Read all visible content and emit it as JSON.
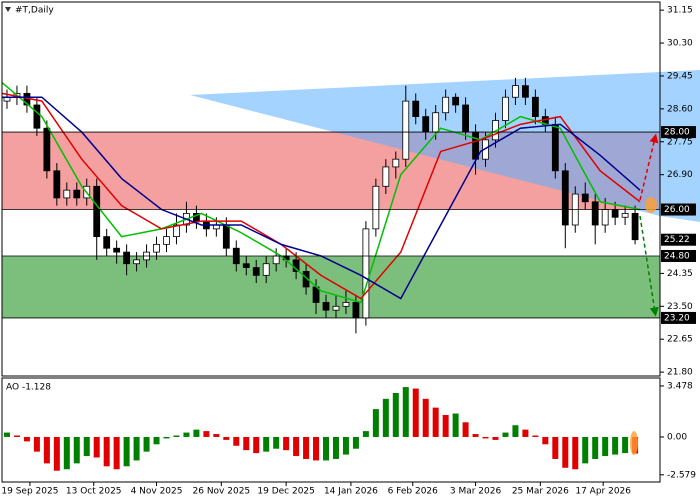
{
  "chart_data": [
    {
      "type": "candlestick",
      "title": "#T,Daily",
      "ylim": [
        21.7,
        31.36
      ],
      "yticks": [
        31.15,
        {
          "value": 30.3,
          "label": "30.30"
        },
        29.45,
        {
          "value": 28.6,
          "label": "28.60"
        },
        27.75,
        {
          "value": 26.9,
          "label": "26.90"
        },
        24.35,
        {
          "value": 23.5,
          "label": "23.50"
        },
        22.65,
        {
          "value": 21.8,
          "label": "21.80"
        }
      ],
      "up_color": "#ffffff",
      "down_color": "#000000",
      "open": [
        28.8,
        28.9,
        29.0,
        28.7,
        28.1,
        27.0,
        26.3,
        26.5,
        26.3,
        26.6,
        25.3,
        25.0,
        24.9,
        24.6,
        24.7,
        24.9,
        25.1,
        25.3,
        25.6,
        25.9,
        25.7,
        25.5,
        25.6,
        25.0,
        24.6,
        24.5,
        24.3,
        24.6,
        24.8,
        24.7,
        24.4,
        24.0,
        23.6,
        23.4,
        23.5,
        23.6,
        23.2,
        25.5,
        26.6,
        27.1,
        27.3,
        28.8,
        28.4,
        28.0,
        28.5,
        28.9,
        28.7,
        28.0,
        27.3,
        27.8,
        28.3,
        28.9,
        29.2,
        28.9,
        28.4,
        28.2,
        27.0,
        25.6,
        26.4,
        26.2,
        25.6,
        26.0,
        25.8,
        25.9
      ],
      "high": [
        29.1,
        29.2,
        29.2,
        28.9,
        28.3,
        27.2,
        26.7,
        26.7,
        26.8,
        26.8,
        25.5,
        25.2,
        25.1,
        24.9,
        25.1,
        25.3,
        25.5,
        25.9,
        26.2,
        26.1,
        25.9,
        25.8,
        25.8,
        25.2,
        24.8,
        24.7,
        24.8,
        25.0,
        25.0,
        24.9,
        24.6,
        24.2,
        23.8,
        23.8,
        23.9,
        23.8,
        25.7,
        26.8,
        27.3,
        27.5,
        29.2,
        29.0,
        28.6,
        28.7,
        29.1,
        29.0,
        28.9,
        28.2,
        28.0,
        28.5,
        29.1,
        29.4,
        29.4,
        29.1,
        28.6,
        28.4,
        27.2,
        26.6,
        26.7,
        26.4,
        26.3,
        26.2,
        26.1,
        26.1
      ],
      "low": [
        28.6,
        28.7,
        28.5,
        27.9,
        26.8,
        26.1,
        26.1,
        26.1,
        26.1,
        24.7,
        24.8,
        24.6,
        24.3,
        24.4,
        24.5,
        24.7,
        24.9,
        25.1,
        25.4,
        25.5,
        25.3,
        25.3,
        24.8,
        24.4,
        24.3,
        24.1,
        24.1,
        24.4,
        24.5,
        24.2,
        23.8,
        23.3,
        23.2,
        23.2,
        23.3,
        22.8,
        23.0,
        25.3,
        26.4,
        26.8,
        27.1,
        28.2,
        27.8,
        27.8,
        28.3,
        28.5,
        27.8,
        26.9,
        27.1,
        27.6,
        28.1,
        28.7,
        28.7,
        28.2,
        28.0,
        26.8,
        25.0,
        25.4,
        26.0,
        25.1,
        25.4,
        25.6,
        25.6,
        25.1
      ],
      "close": [
        28.9,
        29.0,
        28.7,
        28.1,
        27.0,
        26.3,
        26.5,
        26.3,
        26.6,
        25.3,
        25.0,
        24.9,
        24.6,
        24.7,
        24.9,
        25.1,
        25.3,
        25.6,
        25.9,
        25.7,
        25.5,
        25.6,
        25.0,
        24.6,
        24.5,
        24.3,
        24.6,
        24.8,
        24.7,
        24.4,
        24.0,
        23.6,
        23.4,
        23.5,
        23.6,
        23.2,
        25.5,
        26.6,
        27.1,
        27.3,
        28.8,
        28.4,
        28.0,
        28.5,
        28.9,
        28.7,
        28.0,
        27.3,
        27.8,
        28.3,
        28.9,
        29.2,
        28.9,
        28.4,
        28.2,
        27.0,
        25.6,
        26.4,
        26.2,
        25.6,
        26.0,
        25.8,
        25.9,
        25.22
      ],
      "line_x": [
        0,
        4,
        8,
        12,
        16,
        20,
        24,
        28,
        32,
        36,
        40,
        44,
        48,
        52,
        56,
        60,
        64
      ],
      "lines": [
        {
          "color": "#00c000",
          "values": [
            29.28,
            28.4,
            26.6,
            25.3,
            25.5,
            25.9,
            25.4,
            24.8,
            23.9,
            23.6,
            26.9,
            28.1,
            27.8,
            28.4,
            28.1,
            26.2,
            26.0
          ]
        },
        {
          "color": "#e00000",
          "values": [
            29.0,
            28.8,
            27.3,
            26.1,
            25.5,
            25.7,
            25.7,
            25.1,
            24.3,
            23.7,
            24.9,
            27.5,
            27.8,
            28.2,
            28.4,
            27.0,
            26.2
          ]
        },
        {
          "color": "#000090",
          "values": [
            28.9,
            28.9,
            28.0,
            26.8,
            26.0,
            25.6,
            25.6,
            25.1,
            24.8,
            24.3,
            23.7,
            25.6,
            27.5,
            28.1,
            28.2,
            27.4,
            26.5
          ]
        }
      ],
      "zones": [
        {
          "from": 26,
          "to": 28,
          "color": "#f4a0a0"
        },
        {
          "from": 23.2,
          "to": 24.8,
          "color": "#7cbf7c"
        }
      ],
      "levels": [
        {
          "value": 28,
          "label": "28.00"
        },
        {
          "value": 26,
          "label": "26.00"
        },
        {
          "value": 24.8,
          "label": "24.80"
        },
        {
          "value": 23.2,
          "label": "23.20"
        }
      ],
      "last_price": 25.22
    },
    {
      "type": "bar",
      "title": "AO -1.128",
      "ylim": [
        -3.07,
        4.02
      ],
      "yticks": [
        3.478,
        {
          "value": 0,
          "label": "0.00"
        },
        -2.579
      ],
      "up_color": "#008000",
      "down_color": "#e00000",
      "values": [
        0.3,
        0.1,
        -0.3,
        -1.0,
        -1.8,
        -2.3,
        -2.2,
        -1.8,
        -1.3,
        -1.4,
        -2.0,
        -2.2,
        -2.0,
        -1.6,
        -1.0,
        -0.5,
        -0.1,
        0.1,
        0.3,
        0.5,
        0.4,
        0.2,
        -0.2,
        -0.6,
        -0.9,
        -1.1,
        -1.0,
        -0.8,
        -0.9,
        -1.3,
        -1.5,
        -1.6,
        -1.6,
        -1.5,
        -1.2,
        -0.8,
        0.4,
        1.9,
        2.6,
        3.0,
        3.4,
        3.3,
        2.6,
        2.0,
        1.5,
        1.6,
        1.0,
        0.2,
        -0.1,
        -0.2,
        0.3,
        0.8,
        0.5,
        0.1,
        -0.5,
        -1.5,
        -2.1,
        -2.2,
        -1.8,
        -1.5,
        -1.3,
        -1.2,
        -1.1,
        -1.128
      ],
      "xlim": [
        0,
        66
      ],
      "xticks": [
        {
          "value": 2.8,
          "label": "19 Sep 2025"
        },
        {
          "value": 9.2,
          "label": "13 Oct 2025"
        },
        {
          "value": 15.5,
          "label": "4 Nov 2025"
        },
        {
          "value": 22,
          "label": "26 Nov 2025"
        },
        {
          "value": 28.5,
          "label": "19 Dec 2025"
        },
        {
          "value": 35,
          "label": "14 Jan 2026"
        },
        {
          "value": 41.2,
          "label": "6 Feb 2026"
        },
        {
          "value": 47.5,
          "label": "3 Mar 2026"
        },
        {
          "value": 54,
          "label": "25 Mar 2026"
        },
        {
          "value": 60.3,
          "label": "17 Apr 2026"
        }
      ]
    }
  ]
}
